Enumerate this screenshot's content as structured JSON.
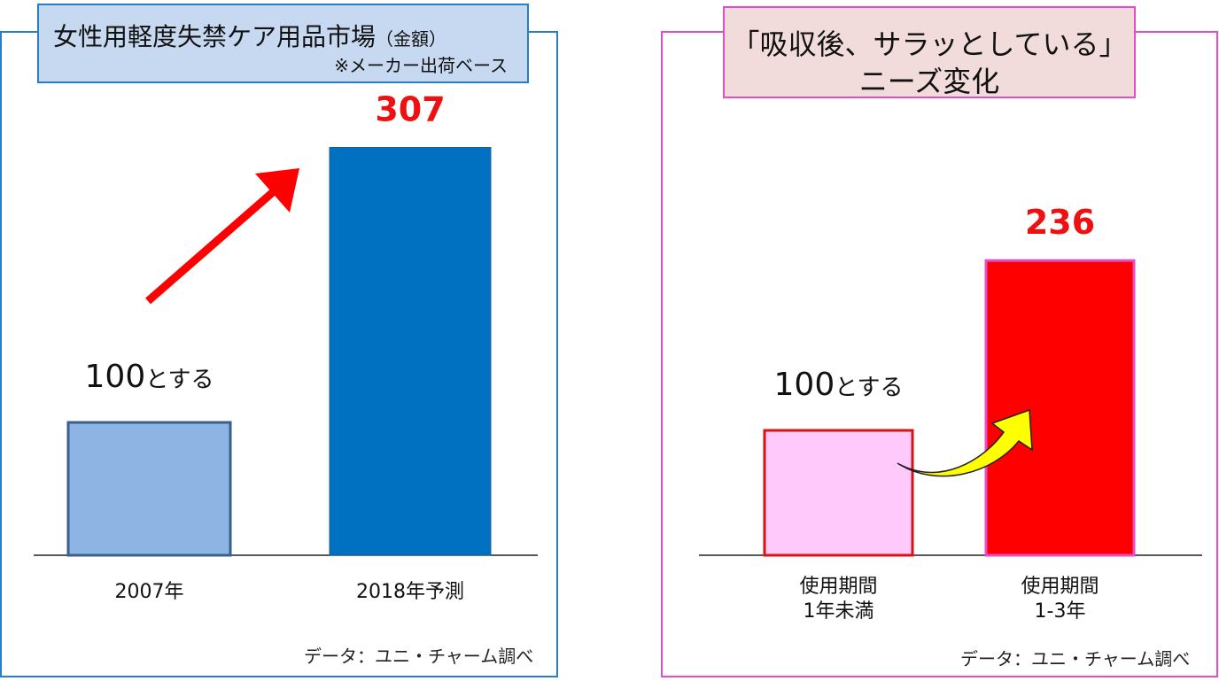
{
  "chart_data": [
    {
      "type": "bar",
      "title": "女性用軽度失禁ケア用品市場",
      "title_unit": "（金額）",
      "subtitle": "※メーカー出荷ベース",
      "categories": [
        "2007年",
        "2018年予測"
      ],
      "values": [
        100,
        307
      ],
      "data_labels": [
        "100とする",
        "307"
      ],
      "ylim": [
        0,
        320
      ],
      "source": "データ：ユニ・チャーム調べ",
      "colors": {
        "bar1_fill": "#8eb4e3",
        "bar1_stroke": "#3a5f8e",
        "bar2_fill": "#0070c0",
        "label2": "#ee1111",
        "arrow": "#ff0000",
        "frame": "#2a7fc4"
      }
    },
    {
      "type": "bar",
      "title_line1": "「吸収後、サラッとしている」",
      "title_line2": "ニーズ変化",
      "categories": [
        [
          "使用期間",
          "1年未満"
        ],
        [
          "使用期間",
          "1-3年"
        ]
      ],
      "values": [
        100,
        236
      ],
      "data_labels": [
        "100とする",
        "236"
      ],
      "ylim": [
        0,
        320
      ],
      "source": "データ：ユニ・チャーム調べ",
      "colors": {
        "bar1_fill": "#ffc9fb",
        "bar1_stroke": "#dd1111",
        "bar2_fill": "#ff0000",
        "bar2_stroke": "#e64bc8",
        "label2": "#ee1111",
        "arrow": "#ffff00",
        "frame": "#e64bc8"
      }
    }
  ]
}
